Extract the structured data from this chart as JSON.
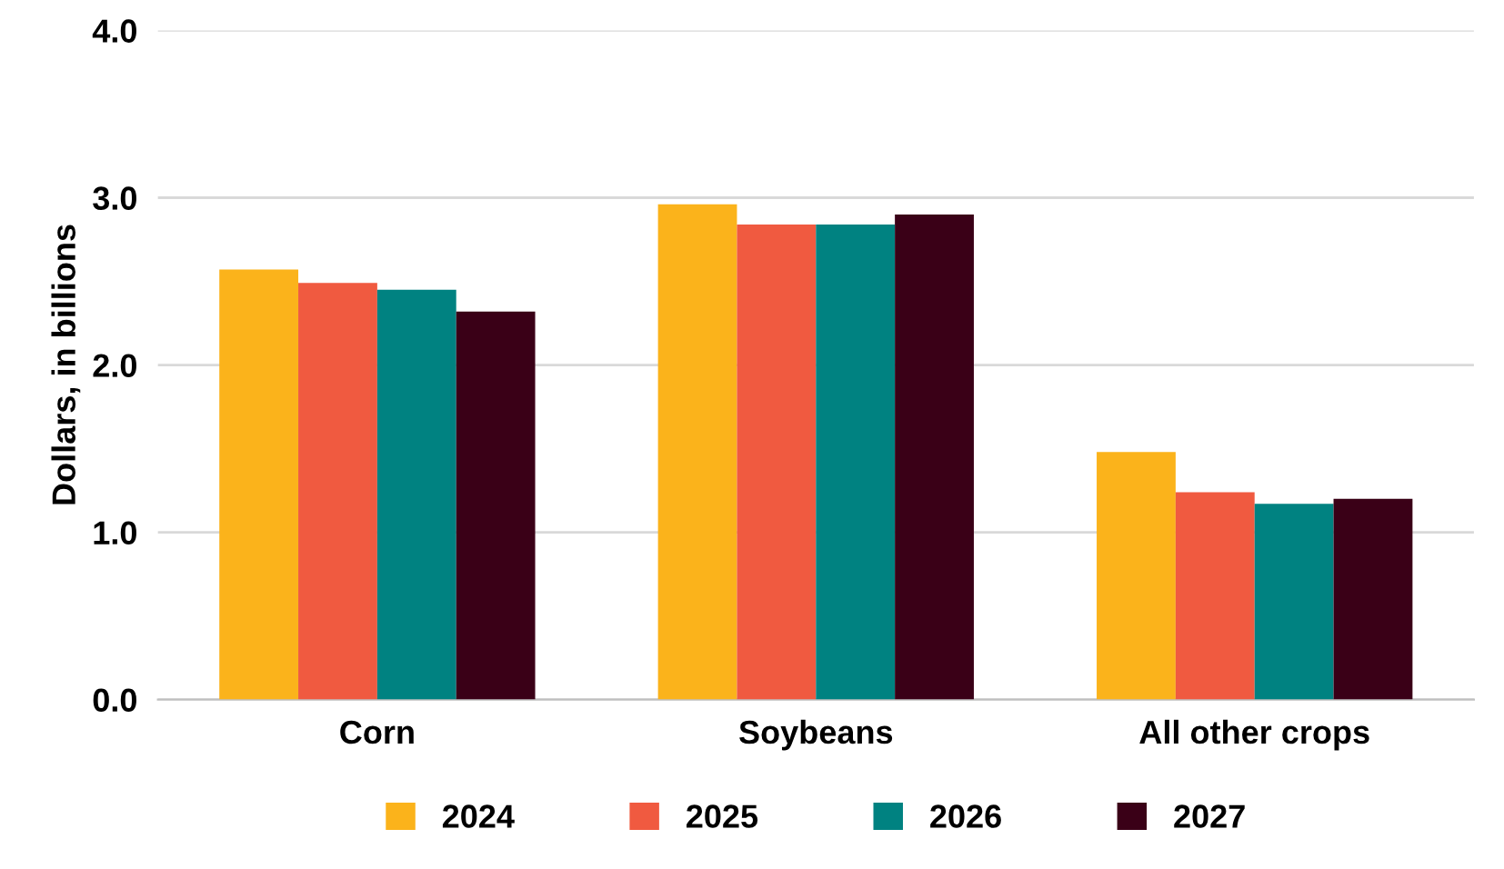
{
  "chart_data": {
    "type": "bar",
    "ylabel": "Dollars, in billions",
    "categories": [
      "Corn",
      "Soybeans",
      "All other crops"
    ],
    "series": [
      {
        "name": "2024",
        "color": "#fbb31b",
        "values": [
          2.57,
          2.96,
          1.48
        ]
      },
      {
        "name": "2025",
        "color": "#f05a40",
        "values": [
          2.49,
          2.84,
          1.24
        ]
      },
      {
        "name": "2026",
        "color": "#008281",
        "values": [
          2.45,
          2.84,
          1.17
        ]
      },
      {
        "name": "2027",
        "color": "#3a0017",
        "values": [
          2.32,
          2.9,
          1.2
        ]
      }
    ],
    "ylim": [
      0,
      4
    ],
    "yticks": [
      {
        "value": 0,
        "label": "0.0"
      },
      {
        "value": 1,
        "label": "1.0"
      },
      {
        "value": 2,
        "label": "2.0"
      },
      {
        "value": 3,
        "label": "3.0"
      },
      {
        "value": 4,
        "label": "4.0"
      }
    ],
    "grid": "y",
    "legend": "bottom"
  }
}
